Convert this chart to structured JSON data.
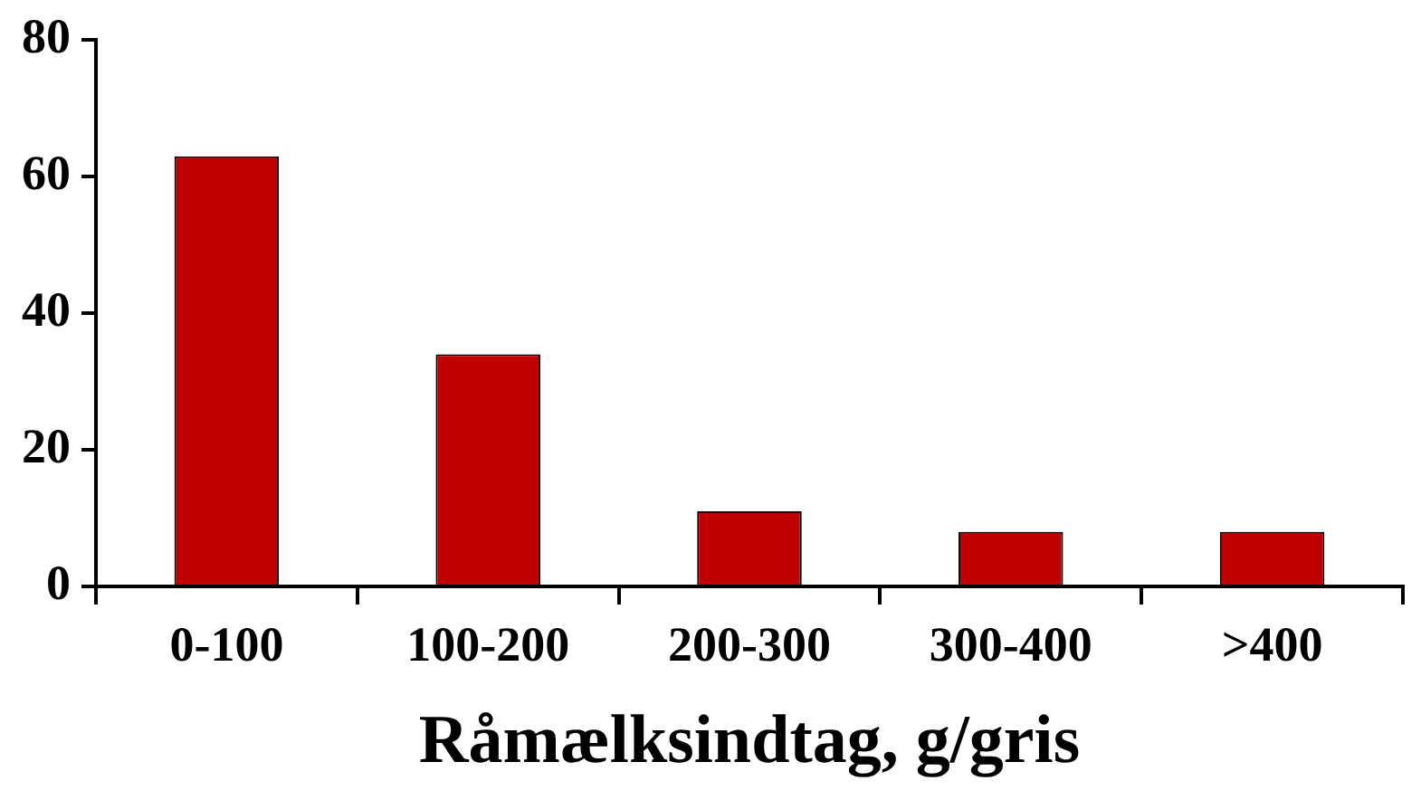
{
  "chart_data": {
    "type": "bar",
    "xlabel": "Råmælksindtag, g/gris",
    "categories": [
      "0-100",
      "100-200",
      "200-300",
      "300-400",
      ">400"
    ],
    "values": [
      63,
      34,
      11,
      8,
      8
    ],
    "color": "#c00000",
    "ylim": [
      0,
      80
    ],
    "yticks": [
      0,
      20,
      40,
      60,
      80
    ],
    "grid": false
  }
}
